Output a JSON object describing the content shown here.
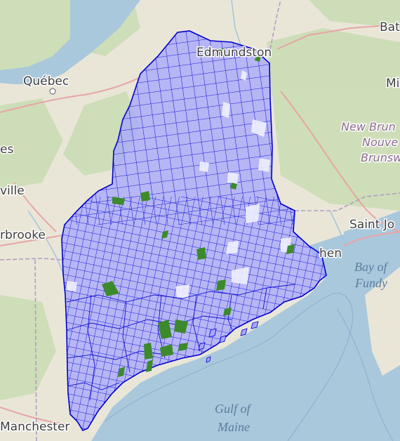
{
  "map": {
    "labels": {
      "quebec": "Québec",
      "edmundston": "Edmundston",
      "bat": "Bat",
      "mi": "Mi",
      "es": "es",
      "ville": "ville",
      "sherbrooke": "rbrooke",
      "saint_john": "Saint Jo",
      "st_stephen": "hen",
      "manchester": "Manchester",
      "new_brunswick": "New Brun",
      "nouveau": "Nouve",
      "brunswick_fr": "Brunsw",
      "bay_of": "Bay of",
      "fundy": "Fundy",
      "gulf_of": "Gulf of",
      "maine": "Maine"
    },
    "colors": {
      "land": "#e9e6d8",
      "forest": "#c8dbb1",
      "water": "#aac8dc",
      "river": "#a3c4da",
      "border": "#b59bc2",
      "road": "#e8a5a5",
      "township_fill": "#a6a6ff",
      "township_line": "#0000cc",
      "conservation": "#3c8a2c"
    },
    "layer": {
      "name": "Maine townships",
      "kind": "choropleth-grid-overlay"
    }
  }
}
